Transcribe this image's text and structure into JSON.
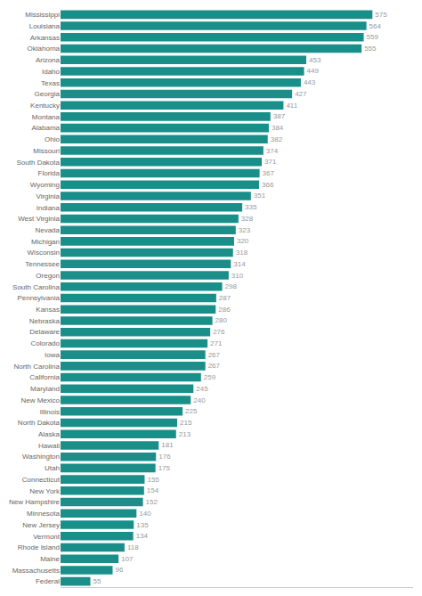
{
  "chart_data": {
    "type": "bar",
    "orientation": "horizontal",
    "categories": [
      "Mississippi",
      "Louisiana",
      "Arkansas",
      "Oklahoma",
      "Arizona",
      "Idaho",
      "Texas",
      "Georgia",
      "Kentucky",
      "Montana",
      "Alabama",
      "Ohio",
      "Missouri",
      "South Dakota",
      "Florida",
      "Wyoming",
      "Virginia",
      "Indiana",
      "West Virginia",
      "Nevada",
      "Michigan",
      "Wisconsin",
      "Tennessee",
      "Oregon",
      "South Carolina",
      "Pennsylvania",
      "Kansas",
      "Nebraska",
      "Delaware",
      "Colorado",
      "Iowa",
      "North Carolina",
      "California",
      "Maryland",
      "New Mexico",
      "Illinois",
      "North Dakota",
      "Alaska",
      "Hawaii",
      "Washington",
      "Utah",
      "Connecticut",
      "New York",
      "New Hampshire",
      "Minnesota",
      "New Jersey",
      "Vermont",
      "Rhode Island",
      "Maine",
      "Massachusetts",
      "Federal"
    ],
    "values": [
      575,
      564,
      559,
      555,
      453,
      449,
      443,
      427,
      411,
      387,
      384,
      382,
      374,
      371,
      367,
      366,
      351,
      335,
      328,
      323,
      320,
      318,
      314,
      310,
      298,
      287,
      286,
      280,
      276,
      271,
      267,
      267,
      259,
      245,
      240,
      225,
      215,
      213,
      181,
      176,
      175,
      155,
      154,
      152,
      140,
      135,
      134,
      118,
      107,
      96,
      55
    ],
    "color": "#1a8f8a",
    "xlim": [
      0,
      650
    ],
    "data_labels": true,
    "tick_labels": "y",
    "grid": false
  }
}
